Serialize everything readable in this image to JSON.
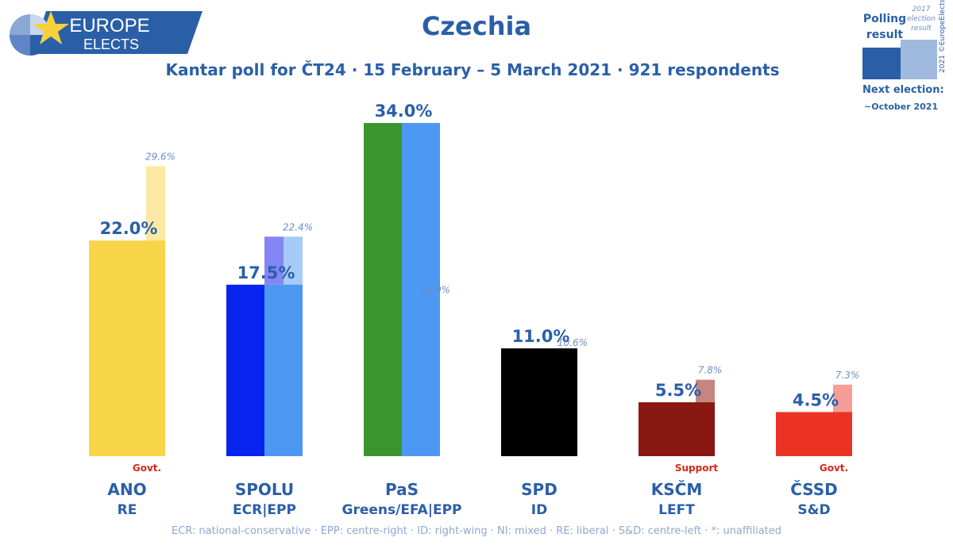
{
  "brand": {
    "line1": "EUROPE",
    "line2": "ELECTS"
  },
  "title": "Czechia",
  "subtitle": "Kantar poll for ČT24 · 15 February – 5 March 2021 · 921 respondents",
  "legend": {
    "poll_label": "Polling result",
    "election_label": "2017 election result",
    "credit": "2021 ©EuropeElects",
    "next_election_label": "Next election:",
    "next_election_value": "~October 2021"
  },
  "footnote": "ECR: national-conservative · EPP: centre-right · ID: right-wing · NI: mixed · RE: liberal · S&D: centre-left · *: unaffiliated",
  "chart_data": {
    "type": "bar",
    "categories": [
      "ANO",
      "SPOLU",
      "PaS",
      "SPD",
      "KSČM",
      "ČSSD"
    ],
    "groups": [
      "RE",
      "ECR|EPP",
      "Greens/EFA|EPP",
      "ID",
      "LEFT",
      "S&D"
    ],
    "roles": [
      "Govt.",
      "",
      "",
      "",
      "Support",
      "Govt."
    ],
    "series": [
      {
        "name": "Polling result",
        "values": [
          22.0,
          17.5,
          34.0,
          11.0,
          5.5,
          4.5
        ]
      },
      {
        "name": "2017 election result",
        "values": [
          29.6,
          22.4,
          16.0,
          10.6,
          7.8,
          7.3
        ]
      }
    ],
    "value_labels": [
      "22.0%",
      "17.5%",
      "34.0%",
      "11.0%",
      "5.5%",
      "4.5%"
    ],
    "election_labels": [
      "29.6%",
      "22.4%",
      "16.0%",
      "10.6%",
      "7.8%",
      "7.3%"
    ],
    "ylim": [
      0,
      34.0
    ],
    "grid": false,
    "colors": {
      "poll_primary": [
        "#f8d448",
        "#0a24f0",
        "#3b952f",
        "#000000",
        "#8a1812",
        "#ea3323"
      ],
      "poll_secondary": [
        null,
        "#4d98f2",
        "#4d98f2",
        null,
        null,
        null
      ],
      "election": [
        "#fce9a6",
        "#a7cbf8",
        "#a7cbf8",
        "#7f7f7f",
        "#c4867f",
        "#f59e97"
      ],
      "election_secondary": [
        null,
        "#8486f3",
        null,
        null,
        null,
        null
      ]
    }
  }
}
